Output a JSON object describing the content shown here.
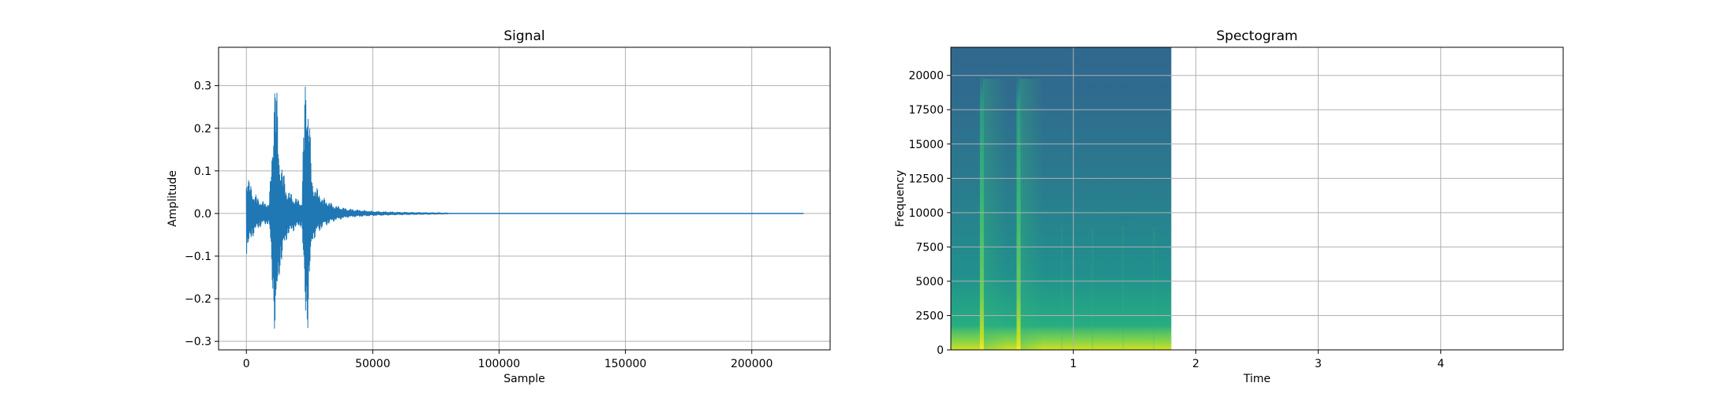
{
  "chart_data": [
    {
      "type": "line",
      "title": "Signal",
      "xlabel": "Sample",
      "ylabel": "Amplitude",
      "xlim": [
        -11000,
        231000
      ],
      "ylim": [
        -0.32,
        0.39
      ],
      "xticks": [
        0,
        50000,
        100000,
        150000,
        200000
      ],
      "xtick_labels": [
        "0",
        "50000",
        "100000",
        "150000",
        "200000"
      ],
      "yticks": [
        -0.3,
        -0.2,
        -0.1,
        0.0,
        0.1,
        0.2,
        0.3
      ],
      "ytick_labels": [
        "−0.3",
        "−0.2",
        "−0.1",
        "0.0",
        "0.1",
        "0.2",
        "0.3"
      ],
      "grid": true,
      "color": "#1f77b4",
      "series": [
        {
          "envelope": {
            "x": [
              0,
              500,
              3000,
              6000,
              9000,
              10500,
              11000,
              11800,
              13000,
              16000,
              19000,
              22000,
              23000,
              23500,
              24300,
              26000,
              30000,
              35000,
              40000,
              50000,
              60000,
              70000,
              80000,
              220500
            ],
            "upper": [
              0.105,
              0.09,
              0.05,
              0.03,
              0.025,
              0.2,
              0.355,
              0.33,
              0.15,
              0.06,
              0.04,
              0.03,
              0.3,
              0.35,
              0.33,
              0.08,
              0.04,
              0.02,
              0.012,
              0.006,
              0.004,
              0.003,
              0.002,
              0.0
            ],
            "lower": [
              -0.1,
              -0.09,
              -0.05,
              -0.03,
              -0.025,
              -0.2,
              -0.29,
              -0.3,
              -0.15,
              -0.06,
              -0.04,
              -0.03,
              -0.22,
              -0.27,
              -0.275,
              -0.07,
              -0.035,
              -0.018,
              -0.01,
              -0.006,
              -0.004,
              -0.003,
              -0.002,
              0.0
            ]
          }
        }
      ]
    },
    {
      "type": "heatmap",
      "title": "Spectogram",
      "xlabel": "Time",
      "ylabel": "Frequency",
      "xlim": [
        0,
        5
      ],
      "ylim": [
        0,
        22050
      ],
      "data_extent_x": [
        0,
        1.8
      ],
      "xticks": [
        1,
        2,
        3,
        4
      ],
      "xtick_labels": [
        "1",
        "2",
        "3",
        "4"
      ],
      "yticks": [
        0,
        2500,
        5000,
        7500,
        10000,
        12500,
        15000,
        17500,
        20000
      ],
      "ytick_labels": [
        "0",
        "2500",
        "5000",
        "7500",
        "10000",
        "12500",
        "15000",
        "17500",
        "20000"
      ],
      "grid": true,
      "colormap": "viridis",
      "onsets_time": [
        0.25,
        0.55
      ],
      "background_color": "#2c6f8e"
    }
  ]
}
